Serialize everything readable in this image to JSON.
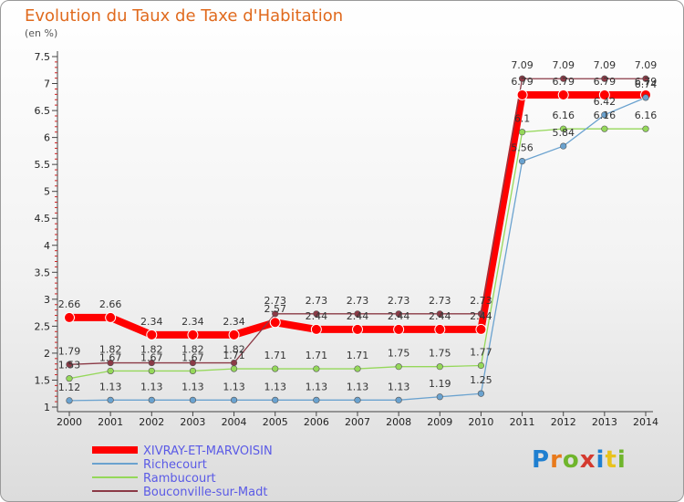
{
  "title": "Evolution du Taux de Taxe d'Habitation",
  "unit": "(en %)",
  "logo": {
    "parts": [
      "P",
      "r",
      "o",
      "x",
      "i",
      "t",
      "i"
    ]
  },
  "chart_data": {
    "type": "line",
    "x": [
      "2000",
      "2001",
      "2002",
      "2003",
      "2004",
      "2005",
      "2006",
      "2007",
      "2008",
      "2009",
      "2010",
      "2011",
      "2012",
      "2013",
      "2014"
    ],
    "ylim": [
      1,
      7.5
    ],
    "yticks": [
      "1",
      "1.5",
      "2",
      "2.5",
      "3",
      "3.5",
      "4",
      "4.5",
      "5",
      "5.5",
      "6",
      "6.5",
      "7",
      "7.5"
    ],
    "grid": false,
    "legend_position": "bottom-left",
    "series": [
      {
        "name": "XIVRAY-ET-MARVOISIN",
        "color": "#ff0000",
        "width": 8,
        "values": [
          2.66,
          2.66,
          2.34,
          2.34,
          2.34,
          2.57,
          2.44,
          2.44,
          2.44,
          2.44,
          2.44,
          6.79,
          6.79,
          6.79,
          6.79
        ],
        "labels": [
          "2.66",
          "2.66",
          "2.34",
          "2.34",
          "2.34",
          "2.57",
          "2.44",
          "2.44",
          "2.44",
          "2.44",
          "2.44",
          "6.79",
          "6.79",
          "6.79",
          "6.79"
        ]
      },
      {
        "name": "Richecourt",
        "color": "#6aa2cf",
        "width": 1.3,
        "values": [
          1.12,
          1.13,
          1.13,
          1.13,
          1.13,
          1.13,
          1.13,
          1.13,
          1.13,
          1.19,
          1.25,
          5.56,
          5.84,
          6.42,
          6.74
        ],
        "labels": [
          "1.12",
          "1.13",
          "1.13",
          "1.13",
          "1.13",
          "1.13",
          "1.13",
          "1.13",
          "1.13",
          "1.19",
          "1.25",
          "5.56",
          "5.84",
          "6.42",
          "6.74"
        ]
      },
      {
        "name": "Rambucourt",
        "color": "#95d85a",
        "width": 1.3,
        "values": [
          1.53,
          1.67,
          1.67,
          1.67,
          1.71,
          1.71,
          1.71,
          1.71,
          1.75,
          1.75,
          1.77,
          6.1,
          6.16,
          6.16,
          6.16
        ],
        "labels": [
          "1.53",
          "1.67",
          "1.67",
          "1.67",
          "1.71",
          "1.71",
          "1.71",
          "1.71",
          "1.75",
          "1.75",
          "1.77",
          "6.1",
          "6.16",
          "6.16",
          "6.16"
        ]
      },
      {
        "name": "Bouconville-sur-Madt",
        "color": "#8b3a46",
        "width": 1.3,
        "values": [
          1.79,
          1.82,
          1.82,
          1.82,
          1.82,
          2.73,
          2.73,
          2.73,
          2.73,
          2.73,
          2.73,
          7.09,
          7.09,
          7.09,
          7.09
        ],
        "labels": [
          "1.79",
          "1.82",
          "1.82",
          "1.82",
          "1.82",
          "2.73",
          "2.73",
          "2.73",
          "2.73",
          "2.73",
          "2.73",
          "7.09",
          "7.09",
          "7.09",
          "7.09"
        ]
      }
    ]
  }
}
